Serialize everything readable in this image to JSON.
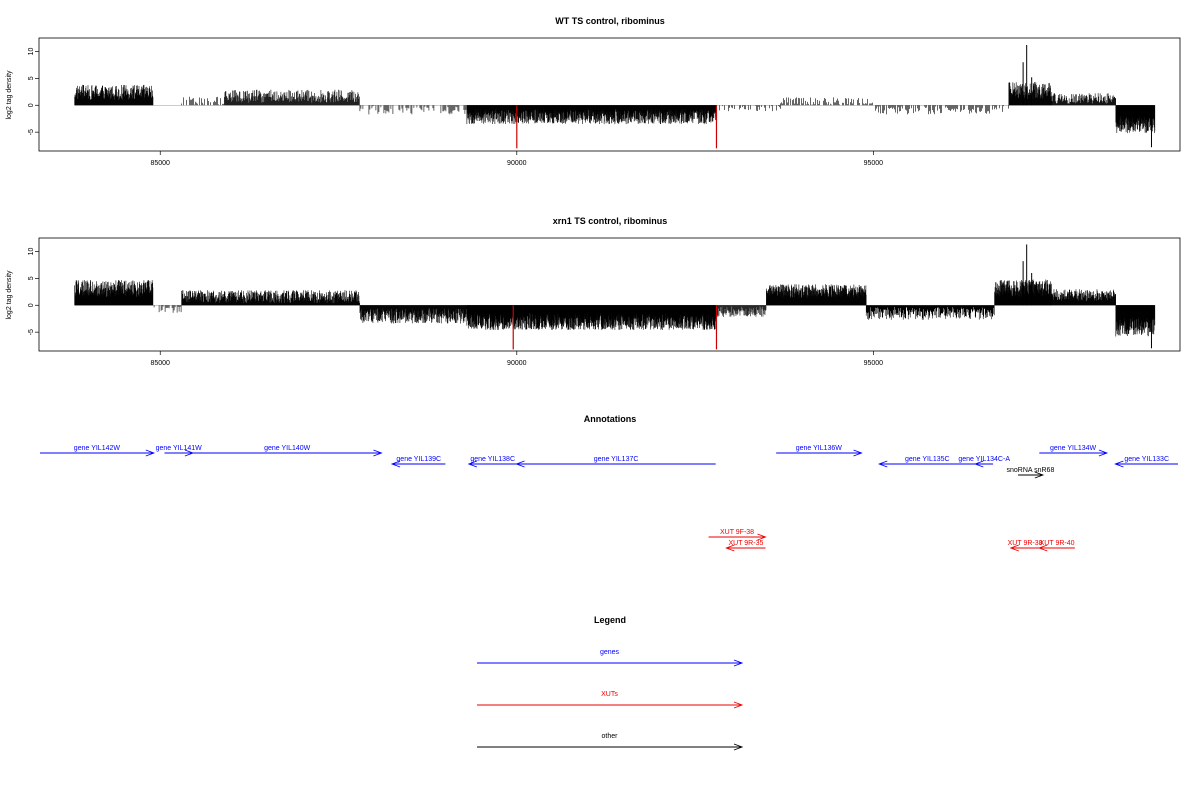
{
  "colors": {
    "genes": "#0000ff",
    "xuts": "#ee0000",
    "other": "#000000",
    "signal": "#000000",
    "highlight": "#cc0000"
  },
  "chart_data": [
    {
      "type": "bar",
      "title": "WT TS control, ribominus",
      "xlabel": "",
      "ylabel": "log2 tag density",
      "xlim": [
        83300,
        99300
      ],
      "ylim": [
        -8.5,
        12.5
      ],
      "xticks": [
        85000,
        90000,
        95000
      ],
      "xtick_labels": [
        "85000",
        "90000",
        "95000"
      ],
      "yticks": [
        -5,
        0,
        5,
        10
      ],
      "ytick_labels": [
        "-5",
        "0",
        "5",
        "10"
      ],
      "segments": [
        {
          "start": 83800,
          "end": 84900,
          "mean": 2.4,
          "amp": 1.4,
          "density": 3
        },
        {
          "start": 85300,
          "end": 85900,
          "mean": 0.9,
          "amp": 0.8,
          "density": 1
        },
        {
          "start": 85900,
          "end": 87800,
          "mean": 1.7,
          "amp": 1.2,
          "density": 2
        },
        {
          "start": 87800,
          "end": 89300,
          "mean": -0.8,
          "amp": 0.9,
          "density": 1
        },
        {
          "start": 89300,
          "end": 92800,
          "mean": -2.1,
          "amp": 1.4,
          "density": 4
        },
        {
          "start": 92800,
          "end": 93700,
          "mean": -0.5,
          "amp": 0.6,
          "density": 1
        },
        {
          "start": 93700,
          "end": 95000,
          "mean": 0.8,
          "amp": 0.7,
          "density": 1
        },
        {
          "start": 95000,
          "end": 96900,
          "mean": -0.9,
          "amp": 0.8,
          "density": 1
        },
        {
          "start": 96900,
          "end": 97500,
          "mean": 2.8,
          "amp": 1.6,
          "density": 3
        },
        {
          "start": 97500,
          "end": 98400,
          "mean": 1.3,
          "amp": 1.0,
          "density": 2
        },
        {
          "start": 98400,
          "end": 98950,
          "mean": -3.6,
          "amp": 1.6,
          "density": 4
        }
      ],
      "peaks": [
        {
          "x": 97150,
          "y": 11.2
        },
        {
          "x": 97100,
          "y": 8.0
        },
        {
          "x": 97220,
          "y": 5.2
        },
        {
          "x": 98900,
          "y": -7.8
        }
      ],
      "highlight_lines": [
        {
          "x": 90000,
          "y": -8.0
        },
        {
          "x": 92800,
          "y": -8.0
        }
      ]
    },
    {
      "type": "bar",
      "title": "xrn1 TS control, ribominus",
      "xlabel": "",
      "ylabel": "log2 tag density",
      "xlim": [
        83300,
        99300
      ],
      "ylim": [
        -8.5,
        12.5
      ],
      "xticks": [
        85000,
        90000,
        95000
      ],
      "xtick_labels": [
        "85000",
        "90000",
        "95000"
      ],
      "yticks": [
        -5,
        0,
        5,
        10
      ],
      "ytick_labels": [
        "-5",
        "0",
        "5",
        "10"
      ],
      "segments": [
        {
          "start": 83800,
          "end": 84900,
          "mean": 3.1,
          "amp": 1.6,
          "density": 4
        },
        {
          "start": 84900,
          "end": 85300,
          "mean": -0.8,
          "amp": 0.6,
          "density": 1
        },
        {
          "start": 85300,
          "end": 87800,
          "mean": 1.6,
          "amp": 1.2,
          "density": 3
        },
        {
          "start": 87800,
          "end": 89300,
          "mean": -2.0,
          "amp": 1.4,
          "density": 3
        },
        {
          "start": 89300,
          "end": 92800,
          "mean": -3.0,
          "amp": 1.6,
          "density": 5
        },
        {
          "start": 92800,
          "end": 93500,
          "mean": -1.2,
          "amp": 1.0,
          "density": 2
        },
        {
          "start": 93500,
          "end": 94900,
          "mean": 2.6,
          "amp": 1.3,
          "density": 4
        },
        {
          "start": 94900,
          "end": 96700,
          "mean": -1.5,
          "amp": 1.2,
          "density": 2
        },
        {
          "start": 96700,
          "end": 97500,
          "mean": 3.2,
          "amp": 1.6,
          "density": 4
        },
        {
          "start": 97500,
          "end": 98400,
          "mean": 1.9,
          "amp": 1.1,
          "density": 3
        },
        {
          "start": 98400,
          "end": 98950,
          "mean": -4.0,
          "amp": 1.8,
          "density": 4
        }
      ],
      "peaks": [
        {
          "x": 97150,
          "y": 11.3
        },
        {
          "x": 97100,
          "y": 8.2
        },
        {
          "x": 97220,
          "y": 6.0
        },
        {
          "x": 98900,
          "y": -8.0
        }
      ],
      "highlight_lines": [
        {
          "x": 89950,
          "y": -8.2
        },
        {
          "x": 92800,
          "y": -8.2
        }
      ]
    }
  ],
  "annotations": {
    "title": "Annotations",
    "features": [
      {
        "label": "gene YIL142W",
        "start": 83300,
        "end": 84900,
        "strand": "+",
        "type": "genes",
        "row": 0
      },
      {
        "label": "gene YIL141W",
        "start": 85050,
        "end": 85450,
        "strand": "+",
        "type": "genes",
        "row": 0
      },
      {
        "label": "gene YIL140W",
        "start": 85450,
        "end": 88100,
        "strand": "+",
        "type": "genes",
        "row": 0
      },
      {
        "label": "gene YIL139C",
        "start": 88250,
        "end": 89000,
        "strand": "-",
        "type": "genes",
        "row": 1
      },
      {
        "label": "gene YIL138C",
        "start": 89330,
        "end": 90000,
        "strand": "-",
        "type": "genes",
        "row": 1
      },
      {
        "label": "gene YIL137C",
        "start": 90000,
        "end": 92800,
        "strand": "-",
        "type": "genes",
        "row": 1
      },
      {
        "label": "gene YIL136W",
        "start": 93650,
        "end": 94850,
        "strand": "+",
        "type": "genes",
        "row": 0
      },
      {
        "label": "gene YIL135C",
        "start": 95100,
        "end": 96450,
        "strand": "-",
        "type": "genes",
        "row": 1
      },
      {
        "label": "gene YIL134C-A",
        "start": 96450,
        "end": 96700,
        "strand": "-",
        "type": "genes",
        "row": 1
      },
      {
        "label": "snoRNA snR68",
        "start": 97050,
        "end": 97400,
        "strand": "+",
        "type": "other",
        "row": 2
      },
      {
        "label": "gene YIL134W",
        "start": 97350,
        "end": 98300,
        "strand": "+",
        "type": "genes",
        "row": 0
      },
      {
        "label": "gene YIL133C",
        "start": 98420,
        "end": 99300,
        "strand": "-",
        "type": "genes",
        "row": 1
      },
      {
        "label": "XUT 9F-38",
        "start": 92700,
        "end": 93500,
        "strand": "+",
        "type": "xuts",
        "row": 3
      },
      {
        "label": "XUT 9R-35",
        "start": 92950,
        "end": 93500,
        "strand": "-",
        "type": "xuts",
        "row": 4
      },
      {
        "label": "XUT 9R-38",
        "start": 96950,
        "end": 97350,
        "strand": "-",
        "type": "xuts",
        "row": 4
      },
      {
        "label": "XUT 9R-40",
        "start": 97350,
        "end": 97850,
        "strand": "-",
        "type": "xuts",
        "row": 4
      }
    ]
  },
  "legend": {
    "title": "Legend",
    "items": [
      {
        "label": "genes",
        "type": "genes"
      },
      {
        "label": "XUTs",
        "type": "xuts"
      },
      {
        "label": "other",
        "type": "other"
      }
    ]
  }
}
